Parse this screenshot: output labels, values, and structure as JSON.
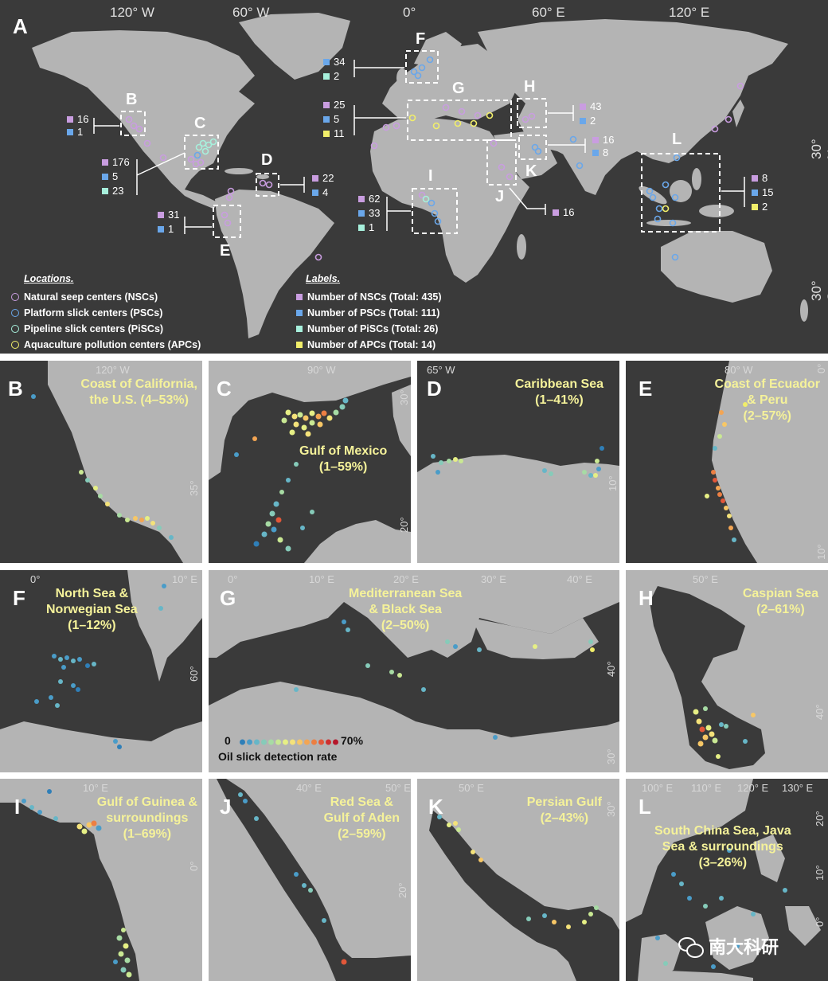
{
  "colors": {
    "ocean": "#3a3a3a",
    "land": "#b4b4b4",
    "nsc": "#c99de0",
    "psc": "#6aa7ea",
    "pisc": "#a7f0dc",
    "apc": "#f1ee6a",
    "title": "#f5f29a"
  },
  "main": {
    "label": "A",
    "top_ticks": [
      "120° W",
      "60° W",
      "0°",
      "60° E",
      "120° E"
    ],
    "right_ticks": [
      "30° N",
      "30° S"
    ],
    "boxes": [
      "B",
      "C",
      "D",
      "E",
      "F",
      "G",
      "H",
      "I",
      "J",
      "K",
      "L"
    ],
    "counts": {
      "B": [
        "16",
        "1"
      ],
      "C": [
        "176",
        "5",
        "23"
      ],
      "D": [
        "22",
        "4"
      ],
      "E": [
        "31",
        "1"
      ],
      "F": [
        "34",
        "2"
      ],
      "G": [
        "25",
        "5",
        "11"
      ],
      "H": [
        "43",
        "2"
      ],
      "I": [
        "62",
        "33",
        "1"
      ],
      "J": [
        "16"
      ],
      "K": [
        "16",
        "8"
      ],
      "L": [
        "8",
        "15",
        "2"
      ]
    },
    "legend": {
      "locations_header": "Locations.",
      "locations": [
        "Natural seep centers (NSCs)",
        "Platform slick centers (PSCs)",
        "Pipeline slick centers (PiSCs)",
        "Aquaculture pollution centers (APCs)"
      ],
      "labels_header": "Labels.",
      "labels": [
        "Number of NSCs (Total: 435)",
        "Number of PSCs (Total: 111)",
        "Number of PiSCs (Total: 26)",
        "Number of APCs (Total: 14)"
      ]
    }
  },
  "panels": {
    "B": {
      "label": "B",
      "title": "Coast of California,\nthe U.S. (4–53%)",
      "ticks": [
        "120° W",
        "35° N"
      ]
    },
    "C": {
      "label": "C",
      "title": "Gulf of Mexico\n(1–59%)",
      "ticks": [
        "90° W",
        "30° N",
        "20° N"
      ]
    },
    "D": {
      "label": "D",
      "title": "Caribbean Sea\n(1–41%)",
      "ticks": [
        "65° W",
        "10° N"
      ]
    },
    "E": {
      "label": "E",
      "title": "Coast of Ecuador\n& Peru\n(2–57%)",
      "ticks": [
        "80° W",
        "0°",
        "10° S"
      ]
    },
    "F": {
      "label": "F",
      "title": "North Sea &\nNorwegian Sea\n(1–12%)",
      "ticks": [
        "0°",
        "10° E",
        "60° N"
      ]
    },
    "G": {
      "label": "G",
      "title": "Mediterranean Sea\n& Black Sea\n(2–50%)",
      "ticks": [
        "0°",
        "10° E",
        "20° E",
        "30° E",
        "40° E",
        "40° N",
        "30° N"
      ]
    },
    "H": {
      "label": "H",
      "title": "Caspian Sea\n(2–61%)",
      "ticks": [
        "50° E",
        "40° N"
      ]
    },
    "I": {
      "label": "I",
      "title": "Gulf of Guinea &\nsurroundings\n(1–69%)",
      "ticks": [
        "10° E",
        "0°"
      ]
    },
    "J": {
      "label": "J",
      "title": "Red Sea &\nGulf of Aden\n(2–59%)",
      "ticks": [
        "40° E",
        "50° E",
        "20° N"
      ]
    },
    "K": {
      "label": "K",
      "title": "Persian Gulf\n(2–43%)",
      "ticks": [
        "50° E",
        "30° N"
      ]
    },
    "L": {
      "label": "L",
      "title": "South China Sea, Java\nSea & surroundings\n(3–26%)",
      "ticks": [
        "100° E",
        "110° E",
        "120° E",
        "130° E",
        "20° N",
        "10° N",
        "0°"
      ]
    }
  },
  "colorbar": {
    "min_label": "0",
    "max_label": "70%",
    "title": "Oil slick detection rate",
    "colors": [
      "#2f7fb8",
      "#4a9cc8",
      "#67b6c7",
      "#86cbb9",
      "#a7dba4",
      "#c9e893",
      "#e6ef85",
      "#f4e27a",
      "#f7c766",
      "#f3a553",
      "#ec7f43",
      "#e25739",
      "#cf2f2f",
      "#b5172b"
    ]
  },
  "watermark": "南大科研"
}
